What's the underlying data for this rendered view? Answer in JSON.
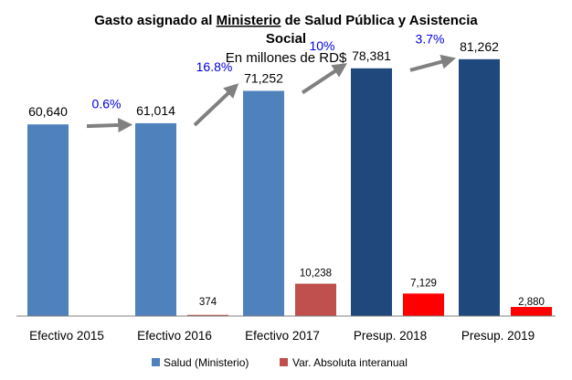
{
  "chart_data": {
    "type": "bar",
    "title_line1_pre": "Gasto asignado al ",
    "title_line1_emph": "Ministerio",
    "title_line1_post": " de Salud Pública y Asistencia",
    "title_line2": "Social",
    "subtitle": "En millones de RD$",
    "categories": [
      "Efectivo 2015",
      "Efectivo 2016",
      "Efectivo 2017",
      "Presup. 2018",
      "Presup. 2019"
    ],
    "series": [
      {
        "name": "Salud (Ministerio)",
        "values": [
          60640,
          61014,
          71252,
          78381,
          81262
        ],
        "labels": [
          "60,640",
          "61,014",
          "71,252",
          "78,381",
          "81,262"
        ],
        "colors": [
          "#4f81bd",
          "#4f81bd",
          "#4f81bd",
          "#1f497d",
          "#1f497d"
        ]
      },
      {
        "name": "Var. Absoluta interanual",
        "values": [
          null,
          374,
          10238,
          7129,
          2880
        ],
        "labels": [
          "",
          "374",
          "10,238",
          "7,129",
          "2,880"
        ],
        "colors": [
          "#c0504d",
          "#c0504d",
          "#c0504d",
          "#ff0000",
          "#ff0000"
        ]
      }
    ],
    "growth_labels": [
      "0.6%",
      "16.8%",
      "10%",
      "3.7%"
    ],
    "ylim": [
      0,
      100000
    ],
    "grid": false,
    "legend_position": "bottom",
    "colors": {
      "arrow": "#808080",
      "growth_text": "#0000e0",
      "legend_salud": "#4f81bd",
      "legend_var": "#c0504d"
    }
  }
}
